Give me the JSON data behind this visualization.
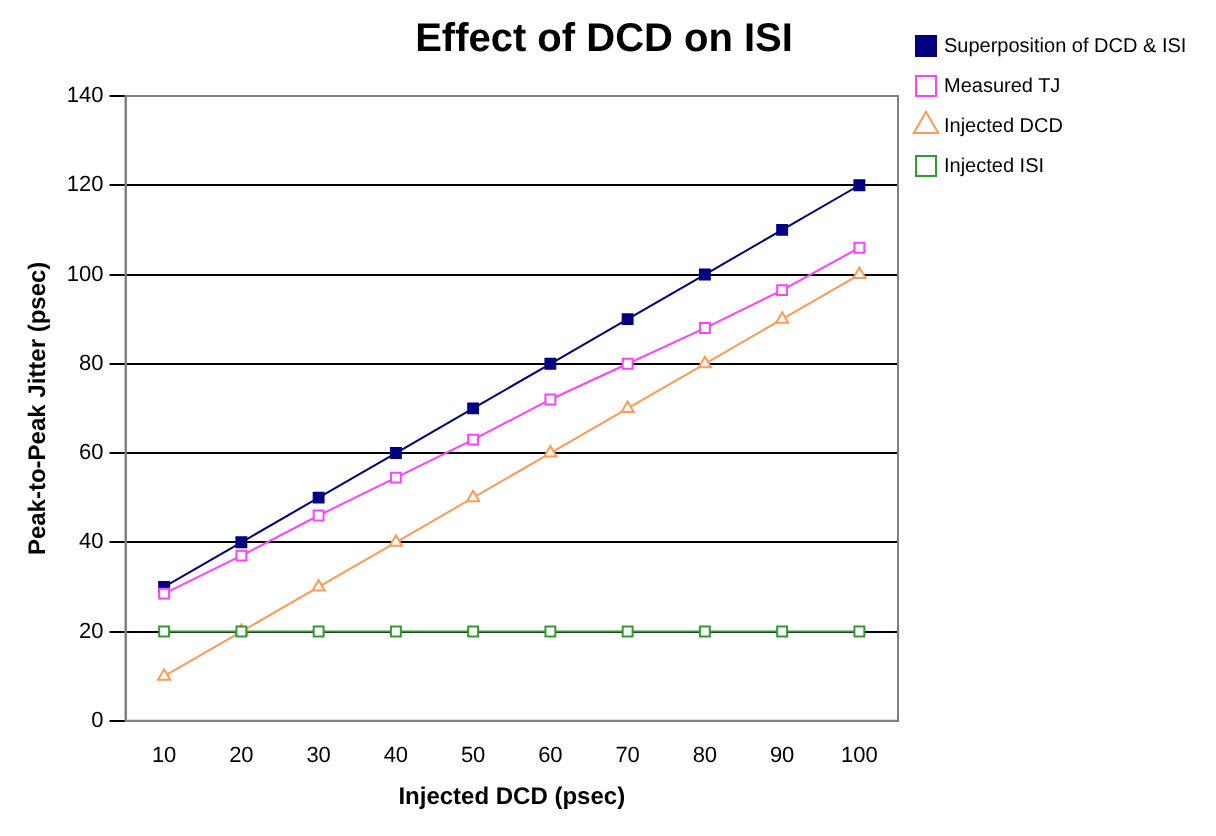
{
  "chart_data": {
    "type": "line",
    "title": "Effect of DCD on ISI",
    "xlabel": "Injected DCD (psec)",
    "ylabel": "Peak-to-Peak Jitter (psec)",
    "categories": [
      "10",
      "20",
      "30",
      "40",
      "50",
      "60",
      "70",
      "80",
      "90",
      "100"
    ],
    "series": [
      {
        "name": "Superposition of DCD & ISI",
        "color": "#000080",
        "marker": "square",
        "values": [
          30,
          40,
          50,
          60,
          70,
          80,
          90,
          100,
          110,
          120
        ]
      },
      {
        "name": "Measured TJ",
        "color": "#ff40ff",
        "marker": "square",
        "values": [
          28.5,
          37,
          46,
          54.5,
          63,
          72,
          80,
          88,
          96.5,
          106
        ]
      },
      {
        "name": "Injected DCD",
        "color": "#ff9955",
        "marker": "triangle",
        "values": [
          10,
          20,
          30,
          40,
          50,
          60,
          70,
          80,
          90,
          100
        ]
      },
      {
        "name": "Injected ISI",
        "color": "#339933",
        "marker": "square",
        "values": [
          20,
          20,
          20,
          20,
          20,
          20,
          20,
          20,
          20,
          20
        ]
      }
    ],
    "ylim": [
      0,
      140
    ],
    "yticks": [
      0,
      20,
      40,
      60,
      80,
      100,
      120,
      140
    ],
    "grid": "y",
    "legend": "top right"
  }
}
